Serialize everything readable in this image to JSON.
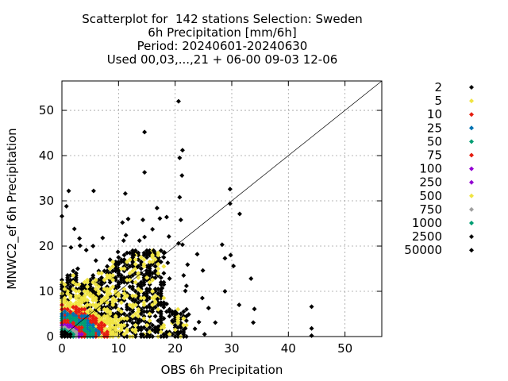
{
  "chart_data": {
    "type": "scatter",
    "title": [
      "Scatterplot for  142 stations Selection: Sweden",
      "6h Precipitation [mm/6h]",
      "Period: 20240601-20240630",
      "Used 00,03,...,21 + 06-00 09-03 12-06"
    ],
    "xlabel": "OBS 6h Precipitation",
    "ylabel": "MNWC2_ef 6h Precipitation",
    "xlim": [
      0,
      56.5
    ],
    "ylim": [
      0,
      56.5
    ],
    "xticks": [
      0,
      10,
      20,
      30,
      40,
      50
    ],
    "yticks": [
      0,
      10,
      20,
      30,
      40,
      50
    ],
    "grid": true,
    "diagonal": true,
    "legend_position": "right",
    "series": [
      {
        "name": "2",
        "color": "#000000",
        "level": 0
      },
      {
        "name": "5",
        "color": "#f0e442",
        "level": 1
      },
      {
        "name": "10",
        "color": "#e51e10",
        "level": 2
      },
      {
        "name": "25",
        "color": "#0072b2",
        "level": 3
      },
      {
        "name": "50",
        "color": "#009e73",
        "level": 4
      },
      {
        "name": "75",
        "color": "#e51e10",
        "level": 5
      },
      {
        "name": "100",
        "color": "#9400d3",
        "level": 6
      },
      {
        "name": "250",
        "color": "#9400d3",
        "level": 7
      },
      {
        "name": "500",
        "color": "#f0e442",
        "level": 8
      },
      {
        "name": "750",
        "color": "#a0a0a0",
        "level": 9
      },
      {
        "name": "1000",
        "color": "#009e73",
        "level": 10
      },
      {
        "name": "2500",
        "color": "#000000",
        "level": 11
      },
      {
        "name": "50000",
        "color": "#000000",
        "level": 12
      }
    ],
    "outliers": [
      [
        20.6,
        52
      ],
      [
        14.6,
        45.2
      ],
      [
        21.3,
        41.2
      ],
      [
        20.8,
        39.5
      ],
      [
        14.6,
        36.3
      ],
      [
        21.2,
        35.6
      ],
      [
        29.7,
        32.6
      ],
      [
        1.2,
        32.2
      ],
      [
        5.6,
        32.2
      ],
      [
        11.2,
        31.6
      ],
      [
        20.8,
        30.8
      ],
      [
        29.7,
        29.4
      ],
      [
        31.4,
        27.1
      ],
      [
        11.7,
        26
      ],
      [
        18.5,
        26.4
      ],
      [
        21,
        25.8
      ],
      [
        0,
        26.6
      ],
      [
        0.8,
        28.8
      ],
      [
        2.2,
        23.8
      ],
      [
        10.7,
        25.2
      ],
      [
        14.3,
        25.8
      ],
      [
        16.8,
        28.4
      ],
      [
        17.3,
        26.1
      ],
      [
        11.3,
        22.4
      ],
      [
        14.6,
        22
      ],
      [
        3.1,
        21.7
      ],
      [
        7.2,
        21.8
      ],
      [
        10.9,
        21.2
      ],
      [
        13.7,
        21.2
      ],
      [
        20.6,
        20.6
      ],
      [
        21.3,
        20.3
      ],
      [
        28.3,
        20.3
      ],
      [
        1.6,
        19.7
      ],
      [
        3.2,
        20.1
      ],
      [
        5.5,
        20
      ],
      [
        4.3,
        19.1
      ],
      [
        18.1,
        18.6
      ],
      [
        23.9,
        18.2
      ],
      [
        29.8,
        18
      ],
      [
        18.7,
        16.3
      ],
      [
        22.2,
        15.9
      ],
      [
        24.9,
        14.6
      ],
      [
        28.8,
        17.3
      ],
      [
        30.3,
        15.6
      ],
      [
        33.4,
        12.8
      ],
      [
        28.8,
        10
      ],
      [
        31.3,
        7
      ],
      [
        34,
        6.1
      ],
      [
        33.8,
        3.1
      ],
      [
        44.1,
        6.6
      ],
      [
        44.1,
        1.8
      ],
      [
        44.1,
        0.2
      ],
      [
        24.8,
        8.5
      ],
      [
        25.9,
        6.3
      ],
      [
        27.1,
        3.1
      ],
      [
        24.2,
        3.2
      ],
      [
        22.4,
        4.9
      ],
      [
        23.5,
        1.7
      ],
      [
        25.2,
        0.5
      ],
      [
        20.3,
        5.1
      ],
      [
        21.8,
        1.8
      ],
      [
        21.5,
        13.5
      ],
      [
        22,
        11.2
      ],
      [
        19,
        12.8
      ],
      [
        17.7,
        10.7
      ],
      [
        16.9,
        8.3
      ],
      [
        18.5,
        7.2
      ],
      [
        19.6,
        3.3
      ],
      [
        20.6,
        0.7
      ],
      [
        17,
        2.2
      ],
      [
        14.3,
        0.4
      ],
      [
        18.9,
        22.1
      ],
      [
        16.2,
        19
      ],
      [
        16,
        23.7
      ],
      [
        12.7,
        18
      ],
      [
        9.9,
        18.7
      ],
      [
        8.5,
        17
      ],
      [
        6,
        16.8
      ],
      [
        2.8,
        15
      ],
      [
        13.4,
        15.4
      ],
      [
        21.8,
        10.1
      ]
    ]
  }
}
